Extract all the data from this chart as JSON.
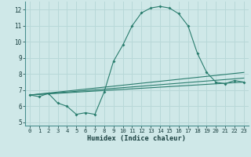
{
  "xlabel": "Humidex (Indice chaleur)",
  "xlim": [
    -0.5,
    23.5
  ],
  "ylim": [
    4.8,
    12.5
  ],
  "yticks": [
    5,
    6,
    7,
    8,
    9,
    10,
    11,
    12
  ],
  "xticks": [
    0,
    1,
    2,
    3,
    4,
    5,
    6,
    7,
    8,
    9,
    10,
    11,
    12,
    13,
    14,
    15,
    16,
    17,
    18,
    19,
    20,
    21,
    22,
    23
  ],
  "bg_color": "#cfe8e8",
  "line_color": "#2a7d6e",
  "grid_color": "#b8d8d8",
  "line1_x": [
    0,
    1,
    2,
    3,
    4,
    5,
    6,
    7,
    8,
    9,
    10,
    11,
    12,
    13,
    14,
    15,
    16,
    17,
    18,
    19,
    20,
    21,
    22,
    23
  ],
  "line1_y": [
    6.7,
    6.6,
    6.8,
    6.2,
    6.0,
    5.5,
    5.6,
    5.5,
    6.9,
    8.8,
    9.8,
    11.0,
    11.8,
    12.1,
    12.2,
    12.1,
    11.75,
    11.0,
    9.3,
    8.1,
    7.5,
    7.4,
    7.6,
    7.5
  ],
  "line2_x": [
    0,
    23
  ],
  "line2_y": [
    6.7,
    7.5
  ],
  "line3_x": [
    0,
    23
  ],
  "line3_y": [
    6.7,
    7.75
  ],
  "line4_x": [
    0,
    23
  ],
  "line4_y": [
    6.7,
    8.1
  ]
}
